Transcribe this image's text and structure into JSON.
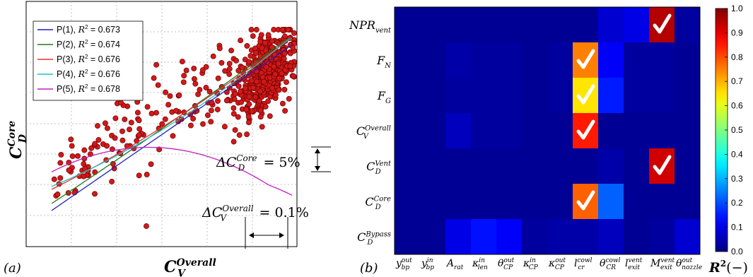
{
  "panel_labels": {
    "a": "(a)",
    "b": "(b)"
  },
  "colors": {
    "scatter_point": "#d11919",
    "scatter_edge": "#6b0000",
    "check_mark": "#ffffff",
    "grid": "#b0b0b0"
  },
  "chart_data": [
    {
      "type": "scatter",
      "xlabel": {
        "base": "C",
        "sub": "V",
        "sup": "Overall"
      },
      "ylabel": {
        "base": "C",
        "sub": "D",
        "sup": "Core"
      },
      "legend_position": "top-left",
      "grid": true,
      "annotations": [
        {
          "label": "ΔC_D^Core = 5%",
          "parts": {
            "base": "ΔC",
            "sub": "D",
            "sup": "Core",
            "rest": " = 5%"
          }
        },
        {
          "label": "ΔC_V^Overall = 0.1%",
          "parts": {
            "base": "ΔC",
            "sub": "V",
            "sup": "Overall",
            "rest": " = 0.1%"
          }
        }
      ],
      "series": [
        {
          "name": "P(1), R² = 0.673",
          "label": "P(1)",
          "r2": "0.673",
          "color": "#1f1fbf"
        },
        {
          "name": "P(2), R² = 0.674",
          "label": "P(2)",
          "r2": "0.674",
          "color": "#207a20"
        },
        {
          "name": "P(3), R² = 0.676",
          "label": "P(3)",
          "r2": "0.676",
          "color": "#e83030"
        },
        {
          "name": "P(4), R² = 0.676",
          "label": "P(4)",
          "r2": "0.676",
          "color": "#1fbfbf"
        },
        {
          "name": "P(5), R² = 0.678",
          "label": "P(5)",
          "r2": "0.678",
          "color": "#bf1fbf"
        }
      ]
    },
    {
      "type": "heatmap",
      "colorbar": {
        "min": 0.0,
        "max": 1.0,
        "ticks": [
          "0.0",
          "0.1",
          "0.2",
          "0.3",
          "0.4",
          "0.5",
          "0.6",
          "0.7",
          "0.8",
          "0.9",
          "1.0"
        ],
        "label": "R²(−)"
      },
      "x_labels": [
        {
          "base": "y",
          "sub": "bp",
          "sup": "out"
        },
        {
          "base": "y",
          "sub": "bp",
          "sup": "in"
        },
        {
          "base": "A",
          "sub": "rat",
          "sup": ""
        },
        {
          "base": "κ",
          "sub": "len",
          "sup": "in"
        },
        {
          "base": "θ",
          "sub": "CP",
          "sup": "out"
        },
        {
          "base": "κ",
          "sub": "CP",
          "sup": "in"
        },
        {
          "base": "κ",
          "sub": "CP",
          "sup": "out"
        },
        {
          "base": "l",
          "sub": "cr",
          "sup": "cowl"
        },
        {
          "base": "θ",
          "sub": "CR",
          "sup": "cowl"
        },
        {
          "base": "l",
          "sub": "exit",
          "sup": "vent"
        },
        {
          "base": "M",
          "sub": "exit",
          "sup": "vent"
        },
        {
          "base": "θ",
          "sub": "nozzle",
          "sup": "out"
        }
      ],
      "y_labels": [
        {
          "base": "NPR",
          "sub": "vent",
          "sup": ""
        },
        {
          "base": "F",
          "sub": "N",
          "sup": ""
        },
        {
          "base": "F",
          "sub": "G",
          "sup": ""
        },
        {
          "base": "C",
          "sub": "V",
          "sup": "Overall"
        },
        {
          "base": "C",
          "sub": "D",
          "sup": "Vent"
        },
        {
          "base": "C",
          "sub": "D",
          "sup": "Core"
        },
        {
          "base": "C",
          "sub": "D",
          "sup": "Bypass"
        }
      ],
      "values": [
        [
          0.02,
          0.02,
          0.02,
          0.02,
          0.02,
          0.02,
          0.02,
          0.02,
          0.08,
          0.1,
          0.95,
          0.03
        ],
        [
          0.02,
          0.02,
          0.04,
          0.03,
          0.03,
          0.02,
          0.03,
          0.75,
          0.12,
          0.03,
          0.03,
          0.02
        ],
        [
          0.02,
          0.02,
          0.03,
          0.03,
          0.03,
          0.02,
          0.03,
          0.65,
          0.15,
          0.03,
          0.03,
          0.02
        ],
        [
          0.02,
          0.02,
          0.06,
          0.03,
          0.03,
          0.02,
          0.02,
          0.85,
          0.02,
          0.02,
          0.02,
          0.02
        ],
        [
          0.02,
          0.02,
          0.02,
          0.02,
          0.02,
          0.02,
          0.02,
          0.02,
          0.04,
          0.02,
          0.92,
          0.02
        ],
        [
          0.02,
          0.02,
          0.02,
          0.02,
          0.02,
          0.02,
          0.02,
          0.78,
          0.22,
          0.02,
          0.02,
          0.02
        ],
        [
          0.02,
          0.02,
          0.1,
          0.14,
          0.12,
          0.03,
          0.04,
          0.04,
          0.06,
          0.02,
          0.03,
          0.08
        ]
      ],
      "checked_cells": [
        [
          0,
          10
        ],
        [
          1,
          7
        ],
        [
          2,
          7
        ],
        [
          3,
          7
        ],
        [
          4,
          10
        ],
        [
          5,
          7
        ]
      ]
    }
  ]
}
